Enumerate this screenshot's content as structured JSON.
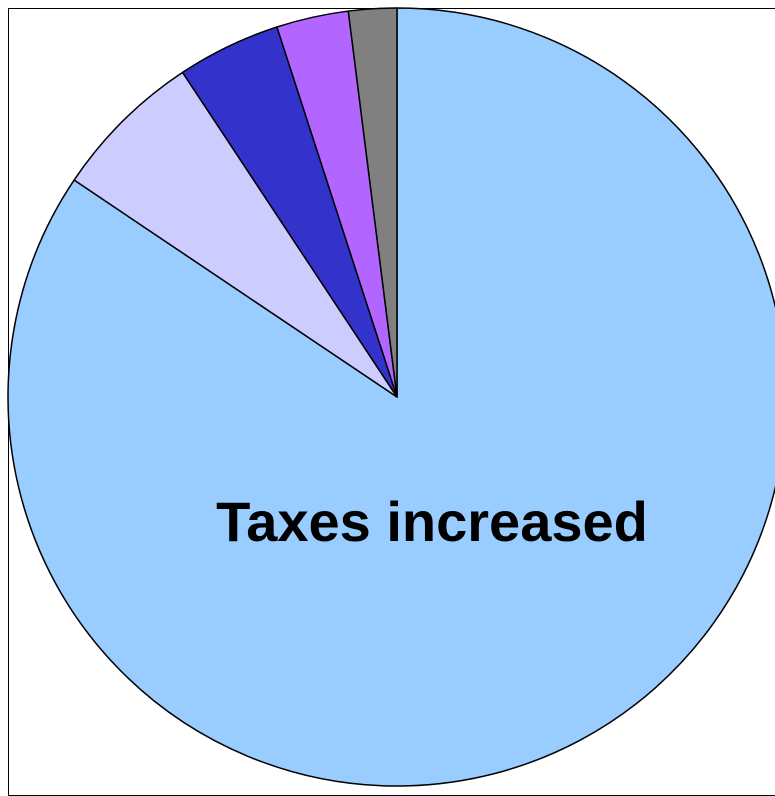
{
  "chart_data": {
    "type": "pie",
    "start_angle_deg": 0,
    "direction": "clockwise",
    "slices": [
      {
        "label": "Taxes increased",
        "value": 84.5,
        "color": "#99CCFF",
        "show_label": true
      },
      {
        "label": "",
        "value": 6.3,
        "color": "#CCCCFF",
        "show_label": false
      },
      {
        "label": "",
        "value": 4.3,
        "color": "#3333CC",
        "show_label": false
      },
      {
        "label": "",
        "value": 3.0,
        "color": "#B266FF",
        "show_label": false
      },
      {
        "label": "",
        "value": 2.0,
        "color": "#808080",
        "show_label": false
      }
    ],
    "legend": "none"
  }
}
